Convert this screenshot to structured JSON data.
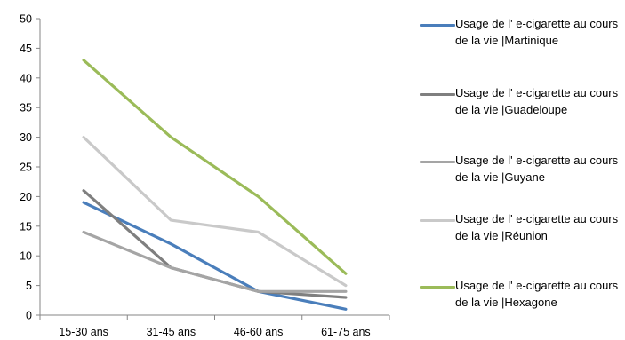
{
  "chart_data": {
    "type": "line",
    "categories": [
      "15-30 ans",
      "31-45 ans",
      "46-60 ans",
      "61-75 ans"
    ],
    "ylim": [
      0,
      50
    ],
    "yticks": [
      0,
      5,
      10,
      15,
      20,
      25,
      30,
      35,
      40,
      45,
      50
    ],
    "grid": false,
    "legend_position": "right",
    "series": [
      {
        "name": "Usage de l' e-cigarette au cours de la vie  |Martinique",
        "color": "#4a7ebb",
        "values": [
          19,
          12,
          4,
          1
        ]
      },
      {
        "name": "Usage de l' e-cigarette au cours de la vie  |Guadeloupe",
        "color": "#7f7f7f",
        "values": [
          21,
          8,
          4,
          3
        ]
      },
      {
        "name": "Usage de l' e-cigarette au cours de la vie  |Guyane",
        "color": "#a5a5a5",
        "values": [
          14,
          8,
          4,
          4
        ]
      },
      {
        "name": "Usage de l' e-cigarette au cours de la vie  |Réunion",
        "color": "#c9c9c9",
        "values": [
          30,
          16,
          14,
          5
        ]
      },
      {
        "name": "Usage de l' e-cigarette au cours de la vie  |Hexagone",
        "color": "#9bbb59",
        "values": [
          43,
          30,
          20,
          7
        ]
      }
    ]
  }
}
